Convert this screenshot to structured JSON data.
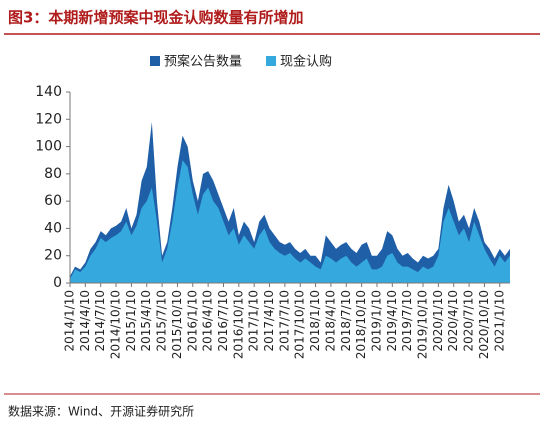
{
  "chart_data": {
    "type": "area",
    "title": "图3：本期新增预案中现金认购数量有所增加",
    "source": "数据来源：Wind、开源证券研究所",
    "categories": [
      "2014/1/10",
      null,
      null,
      "2014/4/10",
      null,
      null,
      "2014/7/10",
      null,
      null,
      "2014/10/10",
      null,
      null,
      "2015/1/10",
      null,
      null,
      "2015/4/10",
      null,
      null,
      "2015/7/10",
      null,
      null,
      "2015/10/10",
      null,
      null,
      "2016/1/10",
      null,
      null,
      "2016/4/10",
      null,
      null,
      "2016/7/10",
      null,
      null,
      "2016/10/10",
      null,
      null,
      "2017/1/10",
      null,
      null,
      "2017/4/10",
      null,
      null,
      "2017/7/10",
      null,
      null,
      "2017/10/10",
      null,
      null,
      "2018/1/10",
      null,
      null,
      "2018/4/10",
      null,
      null,
      "2018/7/10",
      null,
      null,
      "2018/10/10",
      null,
      null,
      "2019/1/10",
      null,
      null,
      "2019/4/10",
      null,
      null,
      "2019/7/10",
      null,
      null,
      "2019/10/10",
      null,
      null,
      "2020/1/10",
      null,
      null,
      "2020/4/10",
      null,
      null,
      "2020/7/10",
      null,
      null,
      "2020/10/10",
      null,
      null,
      "2021/1/10",
      null,
      null
    ],
    "series": [
      {
        "name": "预案公告数量",
        "color": "#1f5fa8",
        "values": [
          5,
          12,
          10,
          15,
          25,
          30,
          38,
          35,
          40,
          42,
          45,
          55,
          40,
          50,
          75,
          85,
          118,
          60,
          20,
          30,
          55,
          85,
          108,
          100,
          75,
          60,
          80,
          82,
          75,
          65,
          55,
          45,
          55,
          35,
          45,
          40,
          30,
          45,
          50,
          40,
          35,
          30,
          28,
          30,
          25,
          22,
          25,
          20,
          20,
          15,
          35,
          30,
          25,
          28,
          30,
          25,
          22,
          28,
          30,
          20,
          20,
          25,
          38,
          35,
          25,
          20,
          22,
          18,
          15,
          20,
          18,
          20,
          25,
          55,
          72,
          60,
          45,
          50,
          40,
          55,
          45,
          30,
          25,
          18,
          25,
          20,
          25
        ]
      },
      {
        "name": "现金认购",
        "color": "#35a9dd",
        "values": [
          3,
          10,
          8,
          12,
          20,
          25,
          33,
          30,
          33,
          35,
          38,
          45,
          35,
          42,
          55,
          60,
          70,
          45,
          15,
          25,
          45,
          70,
          90,
          85,
          65,
          50,
          65,
          70,
          60,
          55,
          45,
          35,
          40,
          28,
          35,
          30,
          25,
          35,
          40,
          30,
          25,
          22,
          20,
          22,
          18,
          15,
          18,
          15,
          12,
          10,
          20,
          18,
          15,
          18,
          20,
          15,
          12,
          15,
          18,
          10,
          10,
          12,
          20,
          22,
          15,
          12,
          12,
          10,
          8,
          12,
          10,
          12,
          20,
          45,
          55,
          45,
          35,
          40,
          30,
          45,
          35,
          25,
          18,
          12,
          20,
          15,
          20
        ]
      }
    ],
    "ylim": [
      0,
      140
    ],
    "yticks": [
      0,
      20,
      40,
      60,
      80,
      100,
      120,
      140
    ],
    "legend": "top",
    "grid": false
  }
}
